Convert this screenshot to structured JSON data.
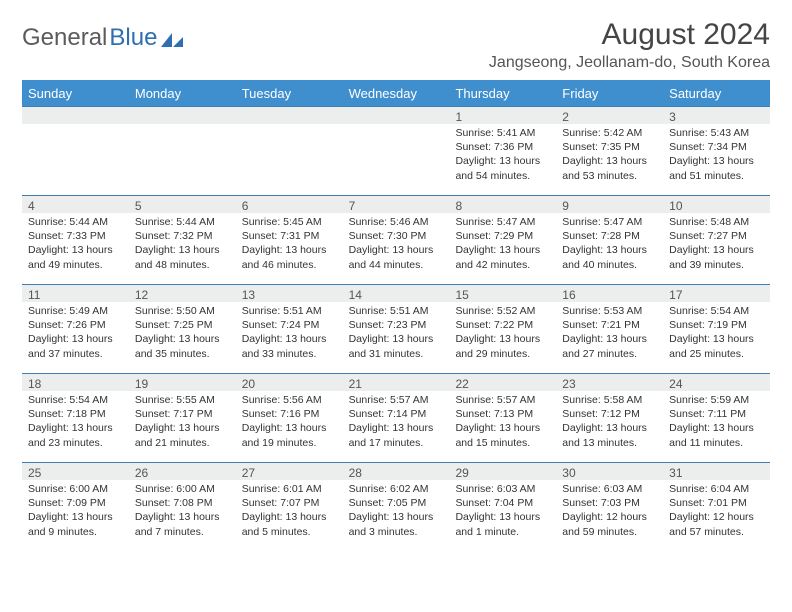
{
  "brand": {
    "part1": "General",
    "part2": "Blue"
  },
  "title": "August 2024",
  "location": "Jangseong, Jeollanam-do, South Korea",
  "colors": {
    "header_bg": "#3f8fcf",
    "rule": "#3f7fb5",
    "daynum_bg": "#eceded",
    "text": "#333333"
  },
  "weekdays": [
    "Sunday",
    "Monday",
    "Tuesday",
    "Wednesday",
    "Thursday",
    "Friday",
    "Saturday"
  ],
  "weeks": [
    [
      {
        "n": "",
        "sr": "",
        "ss": "",
        "dl": ""
      },
      {
        "n": "",
        "sr": "",
        "ss": "",
        "dl": ""
      },
      {
        "n": "",
        "sr": "",
        "ss": "",
        "dl": ""
      },
      {
        "n": "",
        "sr": "",
        "ss": "",
        "dl": ""
      },
      {
        "n": "1",
        "sr": "Sunrise: 5:41 AM",
        "ss": "Sunset: 7:36 PM",
        "dl": "Daylight: 13 hours and 54 minutes."
      },
      {
        "n": "2",
        "sr": "Sunrise: 5:42 AM",
        "ss": "Sunset: 7:35 PM",
        "dl": "Daylight: 13 hours and 53 minutes."
      },
      {
        "n": "3",
        "sr": "Sunrise: 5:43 AM",
        "ss": "Sunset: 7:34 PM",
        "dl": "Daylight: 13 hours and 51 minutes."
      }
    ],
    [
      {
        "n": "4",
        "sr": "Sunrise: 5:44 AM",
        "ss": "Sunset: 7:33 PM",
        "dl": "Daylight: 13 hours and 49 minutes."
      },
      {
        "n": "5",
        "sr": "Sunrise: 5:44 AM",
        "ss": "Sunset: 7:32 PM",
        "dl": "Daylight: 13 hours and 48 minutes."
      },
      {
        "n": "6",
        "sr": "Sunrise: 5:45 AM",
        "ss": "Sunset: 7:31 PM",
        "dl": "Daylight: 13 hours and 46 minutes."
      },
      {
        "n": "7",
        "sr": "Sunrise: 5:46 AM",
        "ss": "Sunset: 7:30 PM",
        "dl": "Daylight: 13 hours and 44 minutes."
      },
      {
        "n": "8",
        "sr": "Sunrise: 5:47 AM",
        "ss": "Sunset: 7:29 PM",
        "dl": "Daylight: 13 hours and 42 minutes."
      },
      {
        "n": "9",
        "sr": "Sunrise: 5:47 AM",
        "ss": "Sunset: 7:28 PM",
        "dl": "Daylight: 13 hours and 40 minutes."
      },
      {
        "n": "10",
        "sr": "Sunrise: 5:48 AM",
        "ss": "Sunset: 7:27 PM",
        "dl": "Daylight: 13 hours and 39 minutes."
      }
    ],
    [
      {
        "n": "11",
        "sr": "Sunrise: 5:49 AM",
        "ss": "Sunset: 7:26 PM",
        "dl": "Daylight: 13 hours and 37 minutes."
      },
      {
        "n": "12",
        "sr": "Sunrise: 5:50 AM",
        "ss": "Sunset: 7:25 PM",
        "dl": "Daylight: 13 hours and 35 minutes."
      },
      {
        "n": "13",
        "sr": "Sunrise: 5:51 AM",
        "ss": "Sunset: 7:24 PM",
        "dl": "Daylight: 13 hours and 33 minutes."
      },
      {
        "n": "14",
        "sr": "Sunrise: 5:51 AM",
        "ss": "Sunset: 7:23 PM",
        "dl": "Daylight: 13 hours and 31 minutes."
      },
      {
        "n": "15",
        "sr": "Sunrise: 5:52 AM",
        "ss": "Sunset: 7:22 PM",
        "dl": "Daylight: 13 hours and 29 minutes."
      },
      {
        "n": "16",
        "sr": "Sunrise: 5:53 AM",
        "ss": "Sunset: 7:21 PM",
        "dl": "Daylight: 13 hours and 27 minutes."
      },
      {
        "n": "17",
        "sr": "Sunrise: 5:54 AM",
        "ss": "Sunset: 7:19 PM",
        "dl": "Daylight: 13 hours and 25 minutes."
      }
    ],
    [
      {
        "n": "18",
        "sr": "Sunrise: 5:54 AM",
        "ss": "Sunset: 7:18 PM",
        "dl": "Daylight: 13 hours and 23 minutes."
      },
      {
        "n": "19",
        "sr": "Sunrise: 5:55 AM",
        "ss": "Sunset: 7:17 PM",
        "dl": "Daylight: 13 hours and 21 minutes."
      },
      {
        "n": "20",
        "sr": "Sunrise: 5:56 AM",
        "ss": "Sunset: 7:16 PM",
        "dl": "Daylight: 13 hours and 19 minutes."
      },
      {
        "n": "21",
        "sr": "Sunrise: 5:57 AM",
        "ss": "Sunset: 7:14 PM",
        "dl": "Daylight: 13 hours and 17 minutes."
      },
      {
        "n": "22",
        "sr": "Sunrise: 5:57 AM",
        "ss": "Sunset: 7:13 PM",
        "dl": "Daylight: 13 hours and 15 minutes."
      },
      {
        "n": "23",
        "sr": "Sunrise: 5:58 AM",
        "ss": "Sunset: 7:12 PM",
        "dl": "Daylight: 13 hours and 13 minutes."
      },
      {
        "n": "24",
        "sr": "Sunrise: 5:59 AM",
        "ss": "Sunset: 7:11 PM",
        "dl": "Daylight: 13 hours and 11 minutes."
      }
    ],
    [
      {
        "n": "25",
        "sr": "Sunrise: 6:00 AM",
        "ss": "Sunset: 7:09 PM",
        "dl": "Daylight: 13 hours and 9 minutes."
      },
      {
        "n": "26",
        "sr": "Sunrise: 6:00 AM",
        "ss": "Sunset: 7:08 PM",
        "dl": "Daylight: 13 hours and 7 minutes."
      },
      {
        "n": "27",
        "sr": "Sunrise: 6:01 AM",
        "ss": "Sunset: 7:07 PM",
        "dl": "Daylight: 13 hours and 5 minutes."
      },
      {
        "n": "28",
        "sr": "Sunrise: 6:02 AM",
        "ss": "Sunset: 7:05 PM",
        "dl": "Daylight: 13 hours and 3 minutes."
      },
      {
        "n": "29",
        "sr": "Sunrise: 6:03 AM",
        "ss": "Sunset: 7:04 PM",
        "dl": "Daylight: 13 hours and 1 minute."
      },
      {
        "n": "30",
        "sr": "Sunrise: 6:03 AM",
        "ss": "Sunset: 7:03 PM",
        "dl": "Daylight: 12 hours and 59 minutes."
      },
      {
        "n": "31",
        "sr": "Sunrise: 6:04 AM",
        "ss": "Sunset: 7:01 PM",
        "dl": "Daylight: 12 hours and 57 minutes."
      }
    ]
  ]
}
